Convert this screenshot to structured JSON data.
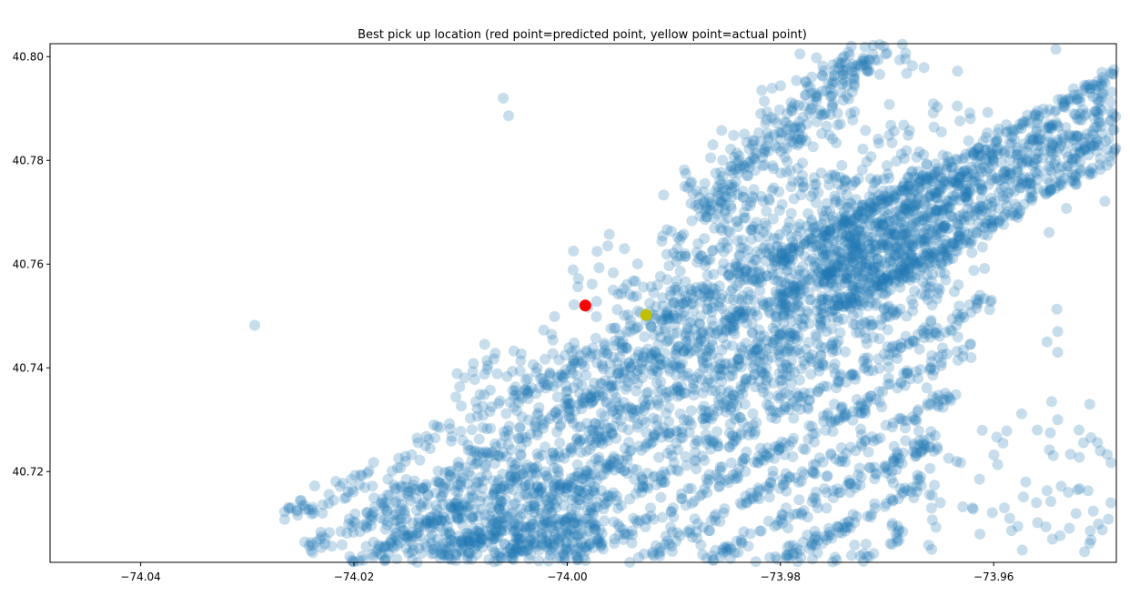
{
  "chart_data": {
    "type": "scatter",
    "title": "Best pick up location (red point=predicted point, yellow point=actual point)",
    "xlabel": "",
    "ylabel": "",
    "xlim": [
      -74.0485,
      -73.9485
    ],
    "ylim": [
      40.7025,
      40.8025
    ],
    "x_ticks": [
      -74.04,
      -74.02,
      -74.0,
      -73.98,
      -73.96
    ],
    "x_tick_labels": [
      "−74.04",
      "−74.02",
      "−74.00",
      "−73.98",
      "−73.96"
    ],
    "y_ticks": [
      40.72,
      40.74,
      40.76,
      40.78,
      40.8
    ],
    "y_tick_labels": [
      "40.72",
      "40.74",
      "40.76",
      "40.78",
      "40.80"
    ],
    "grid": false,
    "legend": "none",
    "background_series": {
      "color": "#1f77b4",
      "alpha": 0.25,
      "approx_point_count": 8000,
      "description": "dense cloud of taxi pick-up locations, mostly along parallel avenues running from lower-left to upper-right"
    },
    "highlight_points": [
      {
        "label": "predicted",
        "x": -73.9983,
        "y": 40.752,
        "color": "#ff0000"
      },
      {
        "label": "actual",
        "x": -73.9926,
        "y": 40.7502,
        "color": "#bfbf00"
      }
    ],
    "notable_outliers": [
      {
        "x": -74.0293,
        "y": 40.7482
      },
      {
        "x": -74.006,
        "y": 40.792
      },
      {
        "x": -74.0055,
        "y": 40.7886
      },
      {
        "x": -74.0125,
        "y": 40.729
      },
      {
        "x": -73.9695,
        "y": 40.71
      },
      {
        "x": -73.9585,
        "y": 40.711
      },
      {
        "x": -73.955,
        "y": 40.745
      },
      {
        "x": -73.954,
        "y": 40.73
      },
      {
        "x": -73.951,
        "y": 40.733
      },
      {
        "x": -73.95,
        "y": 40.724
      },
      {
        "x": -73.949,
        "y": 40.714
      },
      {
        "x": -73.957,
        "y": 40.718
      },
      {
        "x": -73.956,
        "y": 40.714
      },
      {
        "x": -73.959,
        "y": 40.713
      },
      {
        "x": -73.953,
        "y": 40.716
      },
      {
        "x": -73.952,
        "y": 40.728
      },
      {
        "x": -73.965,
        "y": 40.714
      },
      {
        "x": -73.962,
        "y": 40.713
      },
      {
        "x": -73.954,
        "y": 40.747
      },
      {
        "x": -73.954,
        "y": 40.743
      }
    ]
  }
}
